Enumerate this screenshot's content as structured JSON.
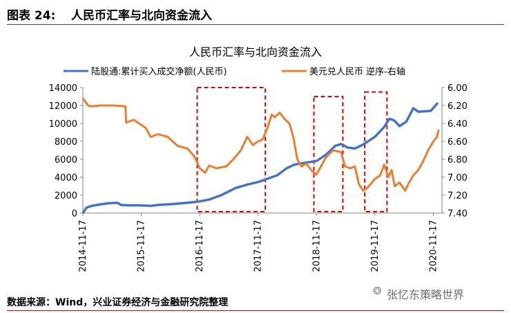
{
  "header": {
    "figure_label": "图表 24:",
    "figure_title": "人民币汇率与北向资金流入"
  },
  "source": "数据来源：Wind，兴业证券经济与金融研究院整理",
  "watermark": {
    "text": "张忆东策略世界",
    "icon": "wechat-icon"
  },
  "chart_data": {
    "type": "line",
    "title": "人民币汇率与北向资金流入",
    "x_ticks": [
      "2014-11-17",
      "2015-11-17",
      "2016-11-17",
      "2017-11-17",
      "2018-11-17",
      "2019-11-17",
      "2020-11-17"
    ],
    "y_left": {
      "min": 0,
      "max": 14000,
      "ticks": [
        "0",
        "2000",
        "4000",
        "6000",
        "8000",
        "10000",
        "12000",
        "14000"
      ]
    },
    "y_right": {
      "min": 6.0,
      "max": 7.4,
      "inverted": true,
      "ticks": [
        "6.00",
        "6.20",
        "6.40",
        "6.60",
        "6.80",
        "7.00",
        "7.20",
        "7.40"
      ]
    },
    "legend_position": "top",
    "series": [
      {
        "name": "陆股通:累计买入成交净额(人民币)",
        "axis": "left",
        "color": "#4472c4",
        "points": [
          [
            "2014-11-17",
            0
          ],
          [
            "2014-12-10",
            600
          ],
          [
            "2015-01-10",
            800
          ],
          [
            "2015-03-01",
            950
          ],
          [
            "2015-05-01",
            1100
          ],
          [
            "2015-06-20",
            1150
          ],
          [
            "2015-07-15",
            900
          ],
          [
            "2015-09-01",
            850
          ],
          [
            "2015-11-17",
            850
          ],
          [
            "2016-01-15",
            800
          ],
          [
            "2016-03-01",
            900
          ],
          [
            "2016-06-01",
            1000
          ],
          [
            "2016-09-01",
            1150
          ],
          [
            "2016-11-17",
            1300
          ],
          [
            "2017-01-15",
            1500
          ],
          [
            "2017-04-01",
            2000
          ],
          [
            "2017-07-01",
            2800
          ],
          [
            "2017-09-15",
            3200
          ],
          [
            "2017-11-17",
            3450
          ],
          [
            "2018-01-10",
            3800
          ],
          [
            "2018-03-15",
            4200
          ],
          [
            "2018-05-15",
            5000
          ],
          [
            "2018-07-01",
            5400
          ],
          [
            "2018-09-01",
            5600
          ],
          [
            "2018-11-17",
            5800
          ],
          [
            "2019-01-15",
            6500
          ],
          [
            "2019-03-15",
            7500
          ],
          [
            "2019-04-20",
            7700
          ],
          [
            "2019-06-01",
            7300
          ],
          [
            "2019-07-15",
            7200
          ],
          [
            "2019-09-01",
            7600
          ],
          [
            "2019-11-17",
            8500
          ],
          [
            "2020-01-15",
            9600
          ],
          [
            "2020-02-15",
            10500
          ],
          [
            "2020-03-10",
            10400
          ],
          [
            "2020-03-25",
            10200
          ],
          [
            "2020-04-20",
            9700
          ],
          [
            "2020-06-01",
            10200
          ],
          [
            "2020-07-15",
            11700
          ],
          [
            "2020-08-15",
            11300
          ],
          [
            "2020-11-01",
            11400
          ],
          [
            "2020-12-15",
            12300
          ]
        ]
      },
      {
        "name": "美元兑人民币 逆序-右轴",
        "axis": "right",
        "color": "#ed7d31",
        "points": [
          [
            "2014-11-17",
            6.12
          ],
          [
            "2014-12-20",
            6.2
          ],
          [
            "2015-01-10",
            6.21
          ],
          [
            "2015-03-01",
            6.2
          ],
          [
            "2015-06-01",
            6.2
          ],
          [
            "2015-08-10",
            6.21
          ],
          [
            "2015-08-15",
            6.39
          ],
          [
            "2015-10-01",
            6.36
          ],
          [
            "2015-12-15",
            6.45
          ],
          [
            "2016-01-15",
            6.55
          ],
          [
            "2016-03-01",
            6.52
          ],
          [
            "2016-05-01",
            6.55
          ],
          [
            "2016-07-01",
            6.65
          ],
          [
            "2016-09-01",
            6.68
          ],
          [
            "2016-10-15",
            6.77
          ],
          [
            "2016-11-17",
            6.9
          ],
          [
            "2016-12-20",
            6.95
          ],
          [
            "2017-01-15",
            6.87
          ],
          [
            "2017-03-01",
            6.9
          ],
          [
            "2017-05-01",
            6.88
          ],
          [
            "2017-06-15",
            6.8
          ],
          [
            "2017-08-01",
            6.7
          ],
          [
            "2017-09-10",
            6.55
          ],
          [
            "2017-10-15",
            6.64
          ],
          [
            "2017-11-17",
            6.6
          ],
          [
            "2017-12-15",
            6.58
          ],
          [
            "2018-01-15",
            6.45
          ],
          [
            "2018-02-10",
            6.3
          ],
          [
            "2018-03-01",
            6.33
          ],
          [
            "2018-04-01",
            6.28
          ],
          [
            "2018-05-01",
            6.35
          ],
          [
            "2018-06-01",
            6.4
          ],
          [
            "2018-06-25",
            6.55
          ],
          [
            "2018-07-20",
            6.8
          ],
          [
            "2018-08-15",
            6.88
          ],
          [
            "2018-09-15",
            6.85
          ],
          [
            "2018-10-20",
            6.93
          ],
          [
            "2018-11-17",
            6.97
          ],
          [
            "2018-12-15",
            6.88
          ],
          [
            "2019-01-15",
            6.78
          ],
          [
            "2019-03-01",
            6.7
          ],
          [
            "2019-04-20",
            6.72
          ],
          [
            "2019-05-15",
            6.88
          ],
          [
            "2019-06-15",
            6.9
          ],
          [
            "2019-07-15",
            6.88
          ],
          [
            "2019-08-10",
            7.08
          ],
          [
            "2019-09-05",
            7.15
          ],
          [
            "2019-10-01",
            7.12
          ],
          [
            "2019-11-17",
            7.02
          ],
          [
            "2019-12-20",
            6.98
          ],
          [
            "2020-01-15",
            6.86
          ],
          [
            "2020-02-10",
            7.0
          ],
          [
            "2020-03-01",
            6.92
          ],
          [
            "2020-03-20",
            7.1
          ],
          [
            "2020-04-20",
            7.06
          ],
          [
            "2020-05-25",
            7.15
          ],
          [
            "2020-06-15",
            7.07
          ],
          [
            "2020-07-15",
            6.98
          ],
          [
            "2020-08-15",
            6.92
          ],
          [
            "2020-09-15",
            6.82
          ],
          [
            "2020-10-15",
            6.7
          ],
          [
            "2020-11-17",
            6.6
          ],
          [
            "2020-12-10",
            6.55
          ],
          [
            "2020-12-20",
            6.47
          ]
        ]
      }
    ],
    "highlight_boxes": [
      {
        "from": "2016-11-01",
        "to": "2018-01-01",
        "y_top": 14000,
        "y_bottom": 0
      },
      {
        "from": "2018-11-01",
        "to": "2019-05-01",
        "y_top": 13000,
        "y_bottom": 0
      },
      {
        "from": "2019-09-15",
        "to": "2020-02-01",
        "y_top": 13500,
        "y_bottom": 0
      }
    ]
  }
}
